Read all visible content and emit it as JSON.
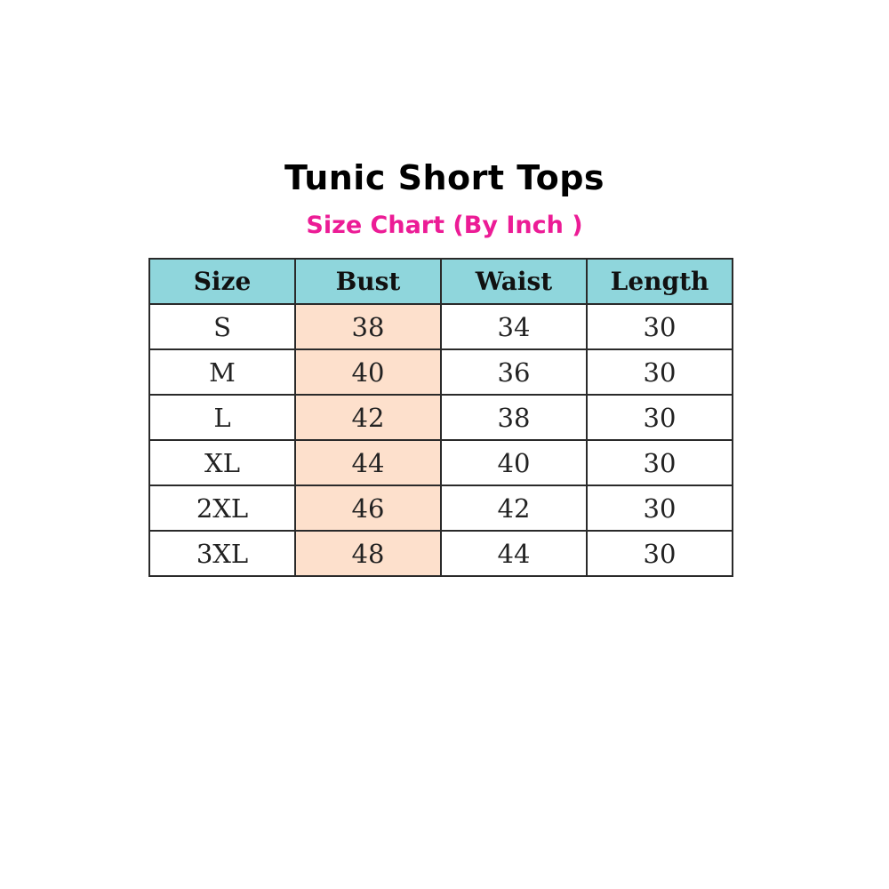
{
  "title": "Tunic Short Tops",
  "subtitle": "Size Chart (By Inch )",
  "colors": {
    "header_bg": "#8fd6dc",
    "bust_column_bg": "#fde0cc",
    "subtitle": "#ec1c96"
  },
  "table": {
    "headers": [
      "Size",
      "Bust",
      "Waist",
      "Length"
    ],
    "rows": [
      [
        "S",
        "38",
        "34",
        "30"
      ],
      [
        "M",
        "40",
        "36",
        "30"
      ],
      [
        "L",
        "42",
        "38",
        "30"
      ],
      [
        "XL",
        "44",
        "40",
        "30"
      ],
      [
        "2XL",
        "46",
        "42",
        "30"
      ],
      [
        "3XL",
        "48",
        "44",
        "30"
      ]
    ]
  }
}
